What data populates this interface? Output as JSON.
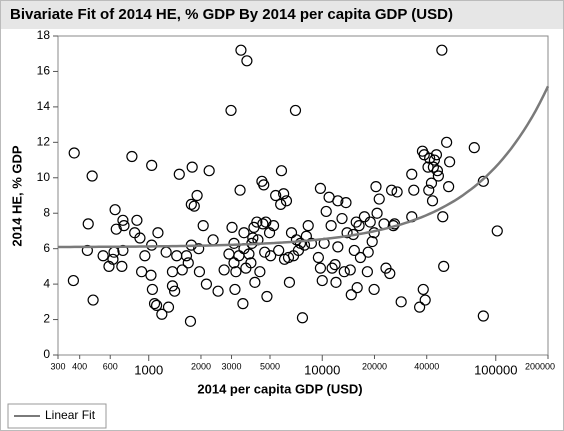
{
  "chart_data": {
    "type": "scatter",
    "title": "Bivariate Fit of 2014 HE, % GDP By 2014 per capita GDP (USD)",
    "x_label": "2014 per capita GDP (USD)",
    "y_label": "2014 HE, % GDP",
    "xscale": "log",
    "xlim": [
      300,
      200000
    ],
    "xticks": [
      300,
      400,
      600,
      1000,
      2000,
      3000,
      5000,
      10000,
      20000,
      40000,
      100000,
      200000
    ],
    "ylim": [
      0,
      18
    ],
    "yticks": [
      0,
      2,
      4,
      6,
      8,
      10,
      12,
      14,
      16,
      18
    ],
    "color": "#000000",
    "x": [
      368,
      372,
      448,
      443,
      472,
      478,
      546,
      590,
      622,
      640,
      650,
      631,
      710,
      720,
      710,
      700,
      800,
      830,
      855,
      890,
      910,
      950,
      1030,
      1040,
      1040,
      1050,
      1080,
      1110,
      1190,
      1130,
      1260,
      1300,
      1370,
      1410,
      1370,
      1450,
      1500,
      1560,
      1650,
      1690,
      1760,
      1760,
      1780,
      1830,
      1900,
      1960,
      1940,
      1740,
      2060,
      2150,
      2230,
      2350,
      2510,
      2720,
      2900,
      2980,
      3020,
      3100,
      3100,
      3140,
      3180,
      3310,
      3360,
      3400,
      3490,
      3540,
      3540,
      3630,
      3680,
      3780,
      3880,
      3930,
      3980,
      4040,
      4090,
      4200,
      4260,
      4370,
      4490,
      4550,
      4600,
      4660,
      4730,
      4800,
      4970,
      5040,
      5240,
      5390,
      5610,
      5760,
      5820,
      5990,
      6060,
      6220,
      6390,
      6470,
      6650,
      6830,
      7010,
      7100,
      7290,
      7490,
      7690,
      7900,
      8100,
      8300,
      8660,
      9500,
      9760,
      9760,
      10000,
      10260,
      10540,
      10950,
      11250,
      11400,
      11850,
      12000,
      12300,
      12300,
      13000,
      13400,
      13700,
      13900,
      14500,
      14700,
      15100,
      15300,
      15700,
      15900,
      16300,
      16600,
      17500,
      18200,
      18400,
      18900,
      19400,
      19900,
      19900,
      20400,
      20700,
      21300,
      22700,
      23300,
      24500,
      25100,
      25700,
      26100,
      27000,
      28500,
      32800,
      32800,
      33700,
      36400,
      37800,
      38200,
      38700,
      39200,
      40700,
      41100,
      41600,
      42600,
      43200,
      43700,
      44300,
      45500,
      46100,
      46700,
      48900,
      49500,
      50100,
      52100,
      53500,
      54200,
      75200,
      84800,
      84800,
      102000
    ],
    "values": [
      4.2,
      11.4,
      7.4,
      5.9,
      10.1,
      3.1,
      5.6,
      5.0,
      5.4,
      8.2,
      7.1,
      5.8,
      7.6,
      7.3,
      5.9,
      5.0,
      11.2,
      6.9,
      7.6,
      6.6,
      4.7,
      5.6,
      4.5,
      10.7,
      6.2,
      3.7,
      2.9,
      2.8,
      2.3,
      6.9,
      5.8,
      2.7,
      3.9,
      3.6,
      4.7,
      5.6,
      10.2,
      4.8,
      5.6,
      5.2,
      6.2,
      8.5,
      10.6,
      8.4,
      9.0,
      4.7,
      6.0,
      1.9,
      7.3,
      4.0,
      10.4,
      6.5,
      3.6,
      4.8,
      5.7,
      13.8,
      7.2,
      5.2,
      6.3,
      3.7,
      4.7,
      5.6,
      9.3,
      17.2,
      2.9,
      6.0,
      6.9,
      4.9,
      16.6,
      5.7,
      5.2,
      6.3,
      6.6,
      7.2,
      4.1,
      7.5,
      6.5,
      4.7,
      9.8,
      7.4,
      9.6,
      5.8,
      7.5,
      3.3,
      6.9,
      5.6,
      7.3,
      9.0,
      5.9,
      8.5,
      10.4,
      9.1,
      5.4,
      8.7,
      5.5,
      4.1,
      6.9,
      5.6,
      13.8,
      6.5,
      5.9,
      6.3,
      2.1,
      6.2,
      6.7,
      7.3,
      6.3,
      5.5,
      9.4,
      4.9,
      4.2,
      6.3,
      8.1,
      8.9,
      7.3,
      4.9,
      5.1,
      4.1,
      8.7,
      6.1,
      7.7,
      4.7,
      8.6,
      6.9,
      4.8,
      3.4,
      6.8,
      5.9,
      7.5,
      3.8,
      7.3,
      5.5,
      7.8,
      4.7,
      5.8,
      7.5,
      6.4,
      3.7,
      6.9,
      9.5,
      8.0,
      8.8,
      7.4,
      4.9,
      4.6,
      9.3,
      7.3,
      7.4,
      9.2,
      3.0,
      10.2,
      7.8,
      9.3,
      2.7,
      11.5,
      3.7,
      11.3,
      3.1,
      10.6,
      9.3,
      11.1,
      9.7,
      8.7,
      10.6,
      11.0,
      11.3,
      10.4,
      10.1,
      17.2,
      7.8,
      5.0,
      12.0,
      9.5,
      10.9,
      11.7,
      9.8,
      2.2,
      7.0
    ],
    "fit": {
      "name": "Linear Fit",
      "color": "#7a7a7a",
      "intercept": 6.08,
      "slope": 4.54e-05
    }
  }
}
